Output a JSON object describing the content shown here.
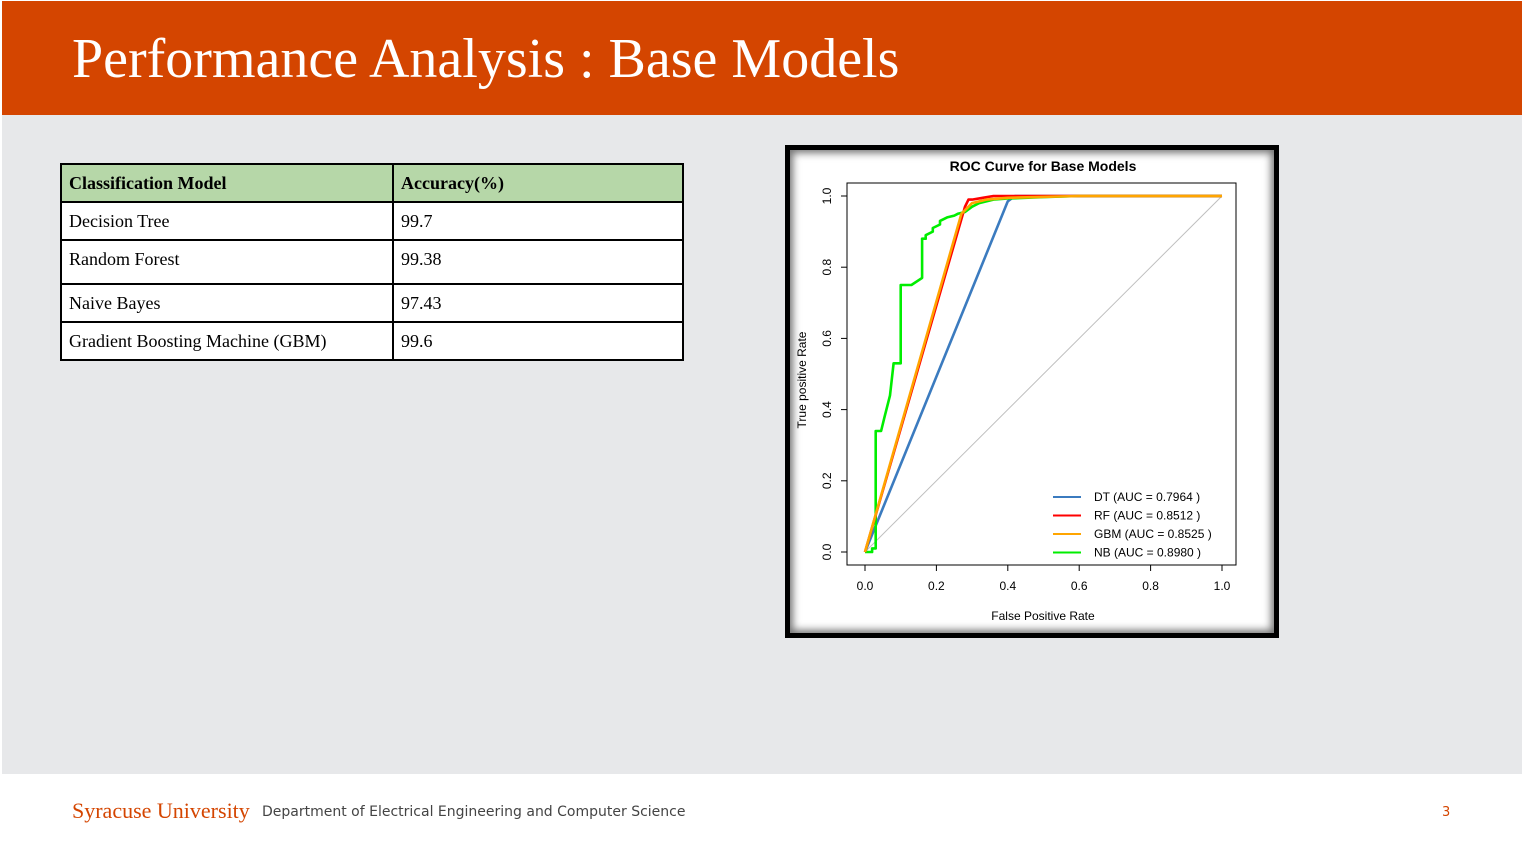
{
  "title": "Performance Analysis : Base Models",
  "table": {
    "headers": [
      "Classification Model",
      "Accuracy(%)"
    ],
    "rows": [
      [
        "Decision Tree",
        "99.7"
      ],
      [
        "Random Forest",
        "99.38"
      ],
      [
        "Naive Bayes",
        "97.43"
      ],
      [
        "Gradient Boosting Machine (GBM)",
        "99.6"
      ]
    ]
  },
  "chart_data": {
    "type": "line",
    "title": "ROC Curve for Base Models",
    "xlabel": "False Positive Rate",
    "ylabel": "True positive Rate",
    "xlim": [
      0,
      1
    ],
    "ylim": [
      0,
      1
    ],
    "xticks": [
      "0.0",
      "0.2",
      "0.4",
      "0.6",
      "0.8",
      "1.0"
    ],
    "yticks": [
      "0.0",
      "0.2",
      "0.4",
      "0.6",
      "0.8",
      "1.0"
    ],
    "grid": false,
    "legend_position": "bottom-right",
    "reference_line": {
      "x": [
        0,
        1
      ],
      "y": [
        0,
        1
      ],
      "color": "#bfbfbf"
    },
    "series": [
      {
        "name": "DT (AUC = 0.7964 )",
        "color": "#3b7bbf",
        "x": [
          0,
          0.4,
          0.42,
          1.0
        ],
        "y": [
          0,
          0.985,
          1.0,
          1.0
        ]
      },
      {
        "name": "RF (AUC = 0.8512 )",
        "color": "#ff0000",
        "x": [
          0,
          0.28,
          0.29,
          0.3,
          0.33,
          0.36,
          1.0
        ],
        "y": [
          0,
          0.97,
          0.99,
          0.99,
          0.995,
          1.0,
          1.0
        ]
      },
      {
        "name": "GBM (AUC = 0.8525 )",
        "color": "#ffa500",
        "x": [
          0,
          0.27,
          0.3,
          0.34,
          0.4,
          0.6,
          1.0
        ],
        "y": [
          0,
          0.95,
          0.98,
          0.99,
          0.995,
          1.0,
          1.0
        ]
      },
      {
        "name": "NB (AUC = 0.8980 )",
        "color": "#00ee00",
        "x": [
          0.0,
          0.02,
          0.02,
          0.03,
          0.03,
          0.045,
          0.055,
          0.07,
          0.08,
          0.08,
          0.1,
          0.1,
          0.13,
          0.16,
          0.16,
          0.17,
          0.17,
          0.19,
          0.19,
          0.21,
          0.21,
          0.23,
          0.25,
          0.26,
          0.28,
          0.3,
          0.32,
          0.36,
          0.4,
          0.5,
          0.6,
          0.8,
          1.0
        ],
        "y": [
          0.0,
          0.0,
          0.01,
          0.01,
          0.34,
          0.34,
          0.38,
          0.44,
          0.53,
          0.53,
          0.53,
          0.75,
          0.75,
          0.77,
          0.88,
          0.88,
          0.89,
          0.9,
          0.91,
          0.92,
          0.93,
          0.94,
          0.945,
          0.95,
          0.955,
          0.97,
          0.98,
          0.99,
          0.993,
          0.997,
          1.0,
          1.0,
          1.0
        ]
      }
    ]
  },
  "footer": {
    "logo_text": "Syracuse University",
    "department": "Department of Electrical Engineering and Computer Science",
    "page_number": "3"
  }
}
